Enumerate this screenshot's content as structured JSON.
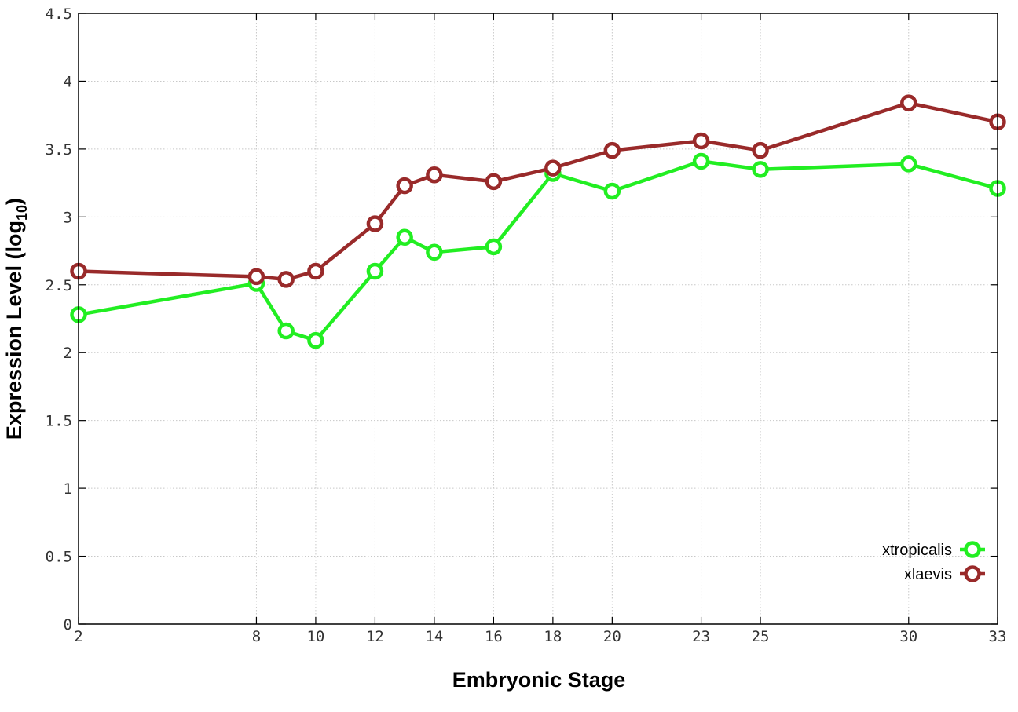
{
  "chart_data": {
    "type": "line",
    "title": "",
    "xlabel": "Embryonic Stage",
    "ylabel_main": "Expression Level (log",
    "ylabel_sub": "10",
    "ylabel_close": ")",
    "x": [
      2,
      8,
      9,
      10,
      12,
      13,
      14,
      16,
      18,
      20,
      23,
      25,
      30,
      33
    ],
    "x_ticks": [
      2,
      8,
      10,
      12,
      14,
      16,
      18,
      20,
      23,
      25,
      30,
      33
    ],
    "x_tick_labels": [
      "2",
      "8",
      "10",
      "12",
      "14",
      "16",
      "18",
      "20",
      "23",
      "25",
      "30",
      "33"
    ],
    "y_ticks": [
      0,
      0.5,
      1,
      1.5,
      2,
      2.5,
      3,
      3.5,
      4,
      4.5
    ],
    "y_tick_labels": [
      "0",
      "0.5",
      "1",
      "1.5",
      "2",
      "2.5",
      "3",
      "3.5",
      "4",
      "4.5"
    ],
    "xlim": [
      2,
      33
    ],
    "ylim": [
      0,
      4.5
    ],
    "grid": true,
    "legend_position": "bottom-right",
    "series": [
      {
        "name": "xtropicalis",
        "color": "#22ee22",
        "values": [
          2.28,
          2.51,
          2.16,
          2.09,
          2.6,
          2.85,
          2.74,
          2.78,
          3.32,
          3.19,
          3.41,
          3.35,
          3.39,
          3.21
        ]
      },
      {
        "name": "xlaevis",
        "color": "#992a2a",
        "values": [
          2.6,
          2.56,
          2.54,
          2.6,
          2.95,
          3.23,
          3.31,
          3.26,
          3.36,
          3.49,
          3.56,
          3.49,
          3.84,
          3.7
        ]
      }
    ]
  }
}
